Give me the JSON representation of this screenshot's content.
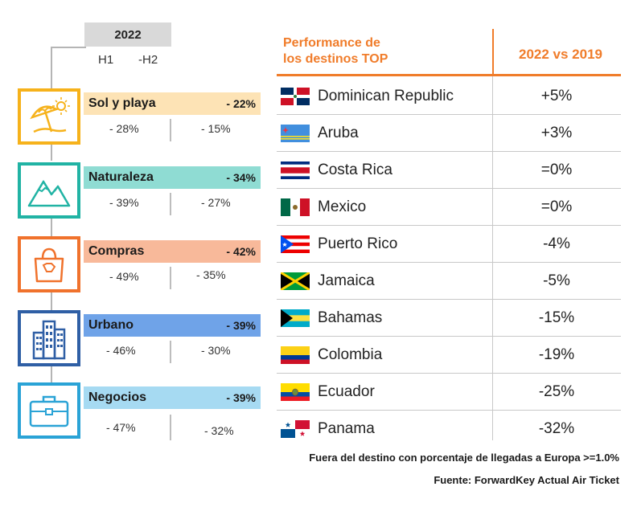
{
  "left": {
    "year": "2022",
    "h1": "H1",
    "h2": "-H2",
    "categories": [
      {
        "name": "Sol y playa",
        "total": "- 22%",
        "h1": "- 28%",
        "h2": "- 15%",
        "icon": "beach-umbrella-icon",
        "color": "#f6b21b",
        "bar": "#fde3b5"
      },
      {
        "name": "Naturaleza",
        "total": "- 34%",
        "h1": "- 39%",
        "h2": "- 27%",
        "icon": "mountains-icon",
        "color": "#21b3a4",
        "bar": "#8fdcd3"
      },
      {
        "name": "Compras",
        "total": "- 42%",
        "h1": "- 49%",
        "h2": "- 35%",
        "icon": "shopping-bag-icon",
        "color": "#f0722c",
        "bar": "#f8b99a"
      },
      {
        "name": "Urbano",
        "total": "- 39%",
        "h1": "- 46%",
        "h2": "- 30%",
        "icon": "buildings-icon",
        "color": "#2f5fa5",
        "bar": "#6fa3e8"
      },
      {
        "name": "Negocios",
        "total": "- 39%",
        "h1": "- 47%",
        "h2": "- 32%",
        "icon": "briefcase-icon",
        "color": "#2aa3d6",
        "bar": "#a6daf2"
      }
    ]
  },
  "table": {
    "title_line1": "Performance de",
    "title_line2": "los destinos TOP",
    "col_title": "2022 vs 2019",
    "rows": [
      {
        "country": "Dominican Republic",
        "value": "+5%",
        "flag": "dominican-republic"
      },
      {
        "country": "Aruba",
        "value": "+3%",
        "flag": "aruba"
      },
      {
        "country": "Costa Rica",
        "value": "=0%",
        "flag": "costa-rica"
      },
      {
        "country": "Mexico",
        "value": "=0%",
        "flag": "mexico"
      },
      {
        "country": "Puerto Rico",
        "value": "-4%",
        "flag": "puerto-rico"
      },
      {
        "country": "Jamaica",
        "value": "-5%",
        "flag": "jamaica"
      },
      {
        "country": "Bahamas",
        "value": "-15%",
        "flag": "bahamas"
      },
      {
        "country": "Colombia",
        "value": "-19%",
        "flag": "colombia"
      },
      {
        "country": "Ecuador",
        "value": "-25%",
        "flag": "ecuador"
      },
      {
        "country": "Panama",
        "value": "-32%",
        "flag": "panama"
      }
    ]
  },
  "footnotes": {
    "line1": "Fuera del destino con porcentaje de llegadas a Europa >=1.0%",
    "line2": "Fuente: ForwardKey Actual Air Ticket"
  }
}
